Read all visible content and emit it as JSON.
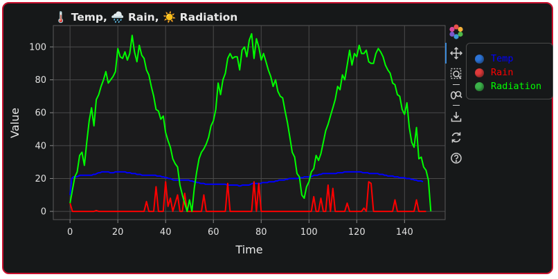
{
  "chart_data": {
    "type": "line",
    "title": "🌡️ Temp, 🌧️ Rain, ☀️ Radiation",
    "xlabel": "Time",
    "ylabel": "Value",
    "xlim": [
      -7,
      157
    ],
    "ylim": [
      -5,
      113
    ],
    "xticks": [
      0,
      20,
      40,
      60,
      80,
      100,
      120,
      140
    ],
    "yticks": [
      0,
      20,
      40,
      60,
      80,
      100
    ],
    "grid": true,
    "legend_position": "top-right (outside plot)",
    "series": [
      {
        "name": "Temp",
        "color": "#0000ff",
        "legend_dot": "#2d74d6",
        "values": [
          10,
          20,
          21,
          21,
          21,
          21.5,
          22,
          22,
          22,
          22,
          22,
          22,
          22,
          22,
          22.5,
          22.5,
          23,
          23.5,
          23.5,
          24,
          24,
          24,
          24,
          24,
          23.5,
          23.5,
          23.5,
          24,
          24,
          24,
          24,
          24,
          24,
          24,
          23.5,
          23.5,
          23.5,
          23,
          23,
          23,
          22.5,
          22.5,
          22.5,
          22,
          22,
          22,
          22,
          22,
          22,
          22,
          22,
          22,
          21.5,
          21.5,
          21.5,
          21,
          21,
          20.5,
          20.5,
          20,
          20,
          19.5,
          19,
          19,
          19,
          19,
          19,
          19,
          19,
          19,
          19,
          19,
          18.5,
          18.5,
          18,
          18,
          17.5,
          17.5,
          17,
          17,
          17,
          16.5,
          16.5,
          16.5,
          16.5,
          16.5,
          16.5,
          16.5,
          16.5,
          16.5,
          16.5,
          16.5,
          16.5,
          16.5,
          16,
          16,
          16,
          16,
          16,
          16,
          16,
          15.5,
          15.5,
          16,
          16,
          16,
          16,
          16,
          16.5,
          17,
          17,
          17,
          17,
          17,
          17,
          17.5,
          17.5,
          17.5,
          17.5,
          18,
          18,
          18,
          18,
          18.5,
          18.5,
          19,
          19,
          19,
          19,
          19.5,
          19.5,
          20,
          20,
          20,
          20,
          20,
          20,
          20.5,
          20.5,
          20.5,
          21,
          21,
          21,
          21,
          21,
          21.5,
          22,
          22,
          22,
          22.5,
          22.5,
          23,
          23,
          23,
          23,
          23,
          23,
          23,
          23,
          23,
          23.5,
          23.5,
          23.5,
          23.5,
          24,
          24,
          24,
          24,
          24,
          24,
          24,
          24,
          24,
          24,
          24,
          23.5,
          23.5,
          23.5,
          23.5,
          23,
          23,
          23,
          23,
          23,
          23,
          22.5,
          22.5,
          22.5,
          22,
          22,
          21.5,
          21.5,
          21.5,
          21.5,
          21,
          21,
          21,
          20.5,
          20.5,
          20.5,
          20.5,
          20,
          20,
          20,
          19.5,
          19.5,
          19,
          19,
          18.5,
          18.5,
          18.5,
          18
        ]
      },
      {
        "name": "Rain",
        "color": "#ff0000",
        "legend_dot": "#e03b3b",
        "points": [
          [
            0,
            5
          ],
          [
            1,
            0
          ],
          [
            10,
            0
          ],
          [
            11,
            0.5
          ],
          [
            12,
            0
          ],
          [
            31,
            0
          ],
          [
            32,
            6
          ],
          [
            33,
            0
          ],
          [
            35,
            0
          ],
          [
            36,
            15
          ],
          [
            37,
            0
          ],
          [
            38,
            0
          ],
          [
            39,
            0
          ],
          [
            40,
            18
          ],
          [
            41,
            3
          ],
          [
            42,
            8
          ],
          [
            43,
            0
          ],
          [
            45,
            10
          ],
          [
            46,
            0
          ],
          [
            47,
            0
          ],
          [
            48,
            11
          ],
          [
            49,
            0
          ],
          [
            55,
            0
          ],
          [
            56,
            10
          ],
          [
            57,
            0
          ],
          [
            65,
            0
          ],
          [
            66,
            17
          ],
          [
            67,
            0
          ],
          [
            76,
            0
          ],
          [
            77,
            18
          ],
          [
            78,
            0
          ],
          [
            79,
            17
          ],
          [
            80,
            0
          ],
          [
            101,
            0
          ],
          [
            102,
            9
          ],
          [
            103,
            0
          ],
          [
            104,
            0
          ],
          [
            105,
            8
          ],
          [
            106,
            0
          ],
          [
            107,
            0
          ],
          [
            108,
            16
          ],
          [
            109,
            0
          ],
          [
            110,
            14
          ],
          [
            111,
            0
          ],
          [
            115,
            0
          ],
          [
            116,
            5
          ],
          [
            117,
            0
          ],
          [
            122,
            0
          ],
          [
            123,
            2
          ],
          [
            124,
            0
          ],
          [
            125,
            18
          ],
          [
            126,
            17
          ],
          [
            127,
            0
          ],
          [
            135,
            0
          ],
          [
            136,
            7
          ],
          [
            137,
            0
          ],
          [
            144,
            0
          ],
          [
            145,
            7
          ],
          [
            146,
            0
          ],
          [
            149,
            0
          ]
        ]
      },
      {
        "name": "Radiation",
        "color": "#00ff00",
        "legend_dot": "#3cb34a",
        "points": [
          [
            0,
            5
          ],
          [
            1,
            13
          ],
          [
            2,
            21
          ],
          [
            3,
            24
          ],
          [
            4,
            34
          ],
          [
            5,
            36
          ],
          [
            6,
            28
          ],
          [
            7,
            42
          ],
          [
            8,
            55
          ],
          [
            9,
            63
          ],
          [
            10,
            52
          ],
          [
            11,
            68
          ],
          [
            12,
            71
          ],
          [
            13,
            76
          ],
          [
            14,
            80
          ],
          [
            15,
            85
          ],
          [
            16,
            78
          ],
          [
            17,
            80
          ],
          [
            18,
            82
          ],
          [
            19,
            85
          ],
          [
            20,
            99
          ],
          [
            21,
            94
          ],
          [
            22,
            93
          ],
          [
            23,
            97
          ],
          [
            24,
            92
          ],
          [
            25,
            96
          ],
          [
            26,
            107
          ],
          [
            27,
            97
          ],
          [
            28,
            91
          ],
          [
            29,
            101
          ],
          [
            30,
            95
          ],
          [
            31,
            93
          ],
          [
            32,
            86
          ],
          [
            33,
            83
          ],
          [
            34,
            76
          ],
          [
            35,
            70
          ],
          [
            36,
            62
          ],
          [
            37,
            61
          ],
          [
            38,
            56
          ],
          [
            39,
            58
          ],
          [
            40,
            48
          ],
          [
            41,
            43
          ],
          [
            42,
            39
          ],
          [
            43,
            32
          ],
          [
            44,
            29
          ],
          [
            45,
            27
          ],
          [
            46,
            16
          ],
          [
            47,
            10
          ],
          [
            48,
            5
          ],
          [
            49,
            0
          ],
          [
            50,
            7
          ],
          [
            51,
            0
          ],
          [
            52,
            14
          ],
          [
            53,
            24
          ],
          [
            54,
            32
          ],
          [
            55,
            36
          ],
          [
            56,
            38
          ],
          [
            57,
            41
          ],
          [
            58,
            45
          ],
          [
            59,
            52
          ],
          [
            60,
            55
          ],
          [
            61,
            62
          ],
          [
            62,
            78
          ],
          [
            63,
            71
          ],
          [
            64,
            80
          ],
          [
            65,
            84
          ],
          [
            66,
            93
          ],
          [
            67,
            96
          ],
          [
            68,
            93
          ],
          [
            69,
            94
          ],
          [
            70,
            94
          ],
          [
            71,
            86
          ],
          [
            72,
            98
          ],
          [
            73,
            100
          ],
          [
            74,
            94
          ],
          [
            75,
            104
          ],
          [
            76,
            108
          ],
          [
            77,
            93
          ],
          [
            78,
            105
          ],
          [
            79,
            100
          ],
          [
            80,
            92
          ],
          [
            81,
            96
          ],
          [
            82,
            91
          ],
          [
            83,
            86
          ],
          [
            84,
            82
          ],
          [
            85,
            76
          ],
          [
            86,
            80
          ],
          [
            87,
            73
          ],
          [
            88,
            70
          ],
          [
            89,
            69
          ],
          [
            90,
            61
          ],
          [
            91,
            54
          ],
          [
            92,
            45
          ],
          [
            93,
            36
          ],
          [
            94,
            33
          ],
          [
            95,
            23
          ],
          [
            96,
            21
          ],
          [
            97,
            10
          ],
          [
            98,
            8
          ],
          [
            99,
            15
          ],
          [
            100,
            18
          ],
          [
            101,
            24
          ],
          [
            102,
            26
          ],
          [
            103,
            34
          ],
          [
            104,
            31
          ],
          [
            105,
            35
          ],
          [
            106,
            42
          ],
          [
            107,
            49
          ],
          [
            108,
            53
          ],
          [
            109,
            58
          ],
          [
            110,
            63
          ],
          [
            111,
            68
          ],
          [
            112,
            76
          ],
          [
            113,
            74
          ],
          [
            114,
            83
          ],
          [
            115,
            80
          ],
          [
            116,
            89
          ],
          [
            117,
            98
          ],
          [
            118,
            89
          ],
          [
            119,
            96
          ],
          [
            120,
            94
          ],
          [
            121,
            101
          ],
          [
            122,
            96
          ],
          [
            123,
            96
          ],
          [
            124,
            98
          ],
          [
            125,
            91
          ],
          [
            126,
            90
          ],
          [
            127,
            90
          ],
          [
            128,
            96
          ],
          [
            129,
            99
          ],
          [
            130,
            97
          ],
          [
            131,
            94
          ],
          [
            132,
            89
          ],
          [
            133,
            86
          ],
          [
            134,
            84
          ],
          [
            135,
            78
          ],
          [
            136,
            77
          ],
          [
            137,
            71
          ],
          [
            138,
            70
          ],
          [
            139,
            62
          ],
          [
            140,
            59
          ],
          [
            141,
            66
          ],
          [
            142,
            51
          ],
          [
            143,
            42
          ],
          [
            144,
            39
          ],
          [
            145,
            51
          ],
          [
            146,
            32
          ],
          [
            147,
            33
          ],
          [
            148,
            27
          ],
          [
            149,
            25
          ],
          [
            150,
            19
          ],
          [
            151,
            0
          ]
        ]
      }
    ]
  }
}
